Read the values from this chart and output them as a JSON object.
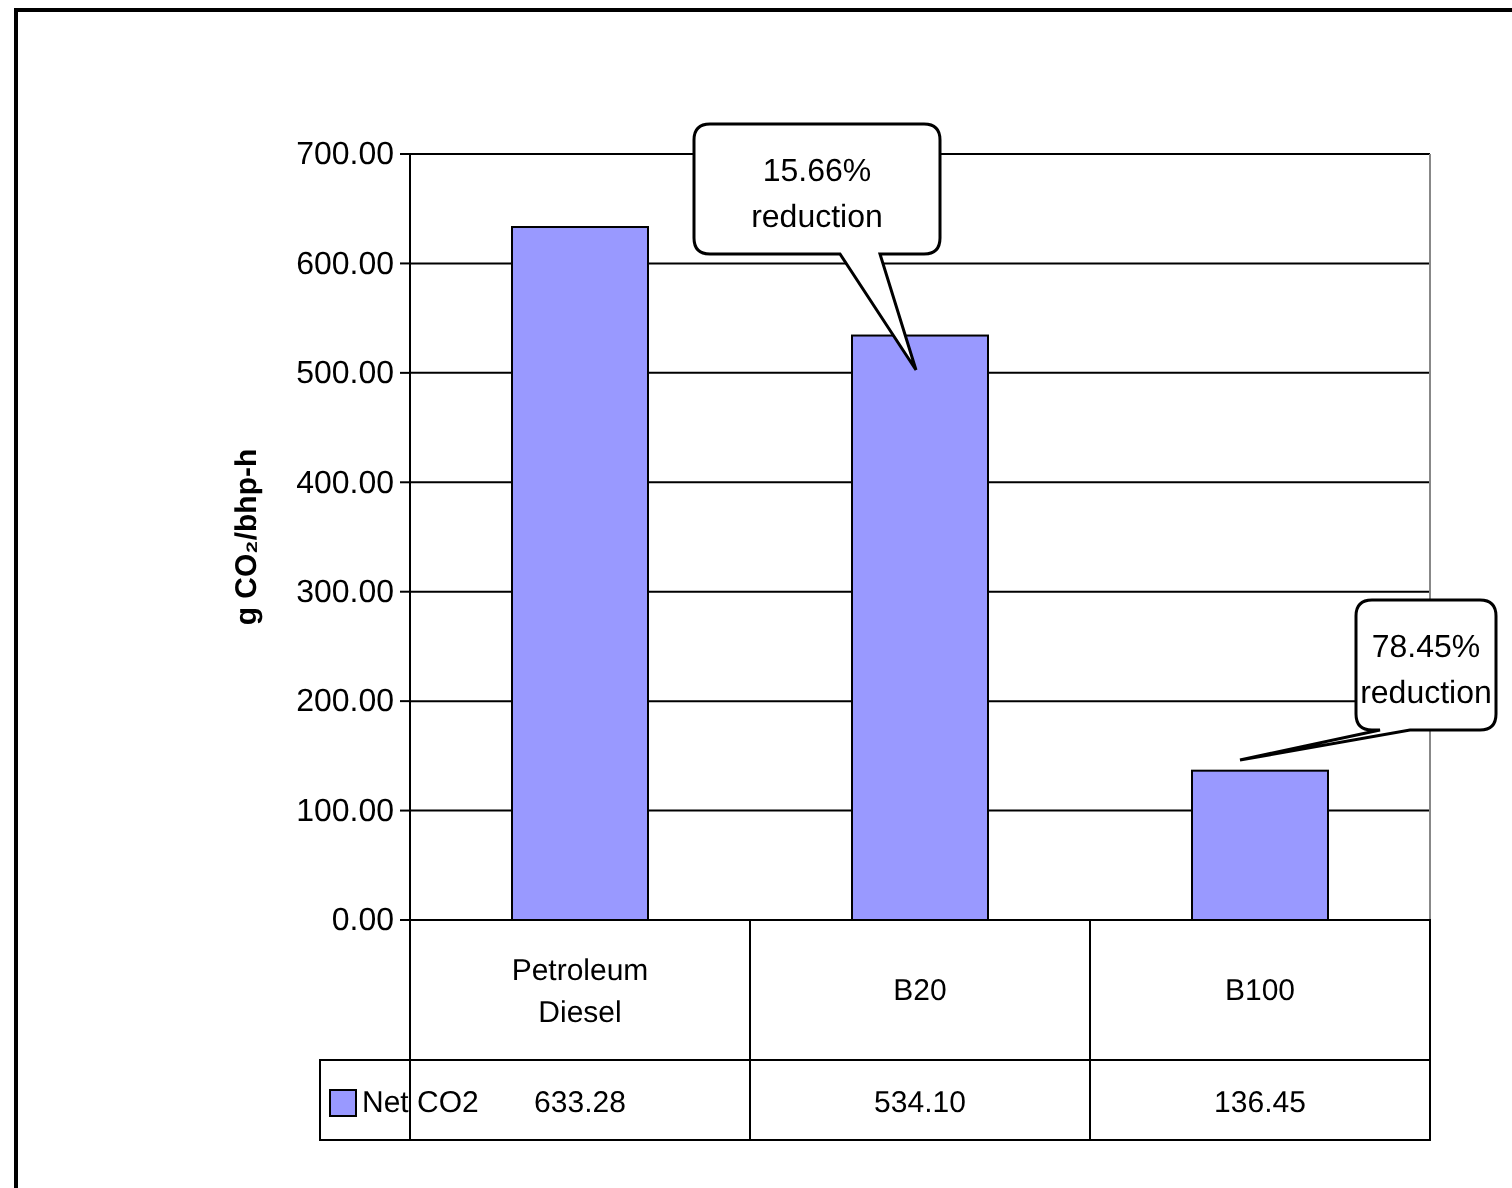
{
  "chart_data": {
    "type": "bar",
    "ylabel": "g CO₂/bhp-h",
    "categories": [
      "Petroleum Diesel",
      "B20",
      "B100"
    ],
    "series": [
      {
        "name": "Net CO2",
        "color": "#9999ff",
        "values": [
          633.28,
          534.1,
          136.45
        ]
      }
    ],
    "value_labels": [
      "633.28",
      "534.10",
      "136.45"
    ],
    "ylim": [
      0,
      700
    ],
    "yticks": [
      {
        "value": 0,
        "label": "0.00"
      },
      {
        "value": 100,
        "label": "100.00"
      },
      {
        "value": 200,
        "label": "200.00"
      },
      {
        "value": 300,
        "label": "300.00"
      },
      {
        "value": 400,
        "label": "400.00"
      },
      {
        "value": 500,
        "label": "500.00"
      },
      {
        "value": 600,
        "label": "600.00"
      },
      {
        "value": 700,
        "label": "700.00"
      }
    ],
    "grid": "y",
    "legend": "bottom",
    "annotations": [
      "15.66% reduction",
      "78.45% reduction"
    ]
  }
}
